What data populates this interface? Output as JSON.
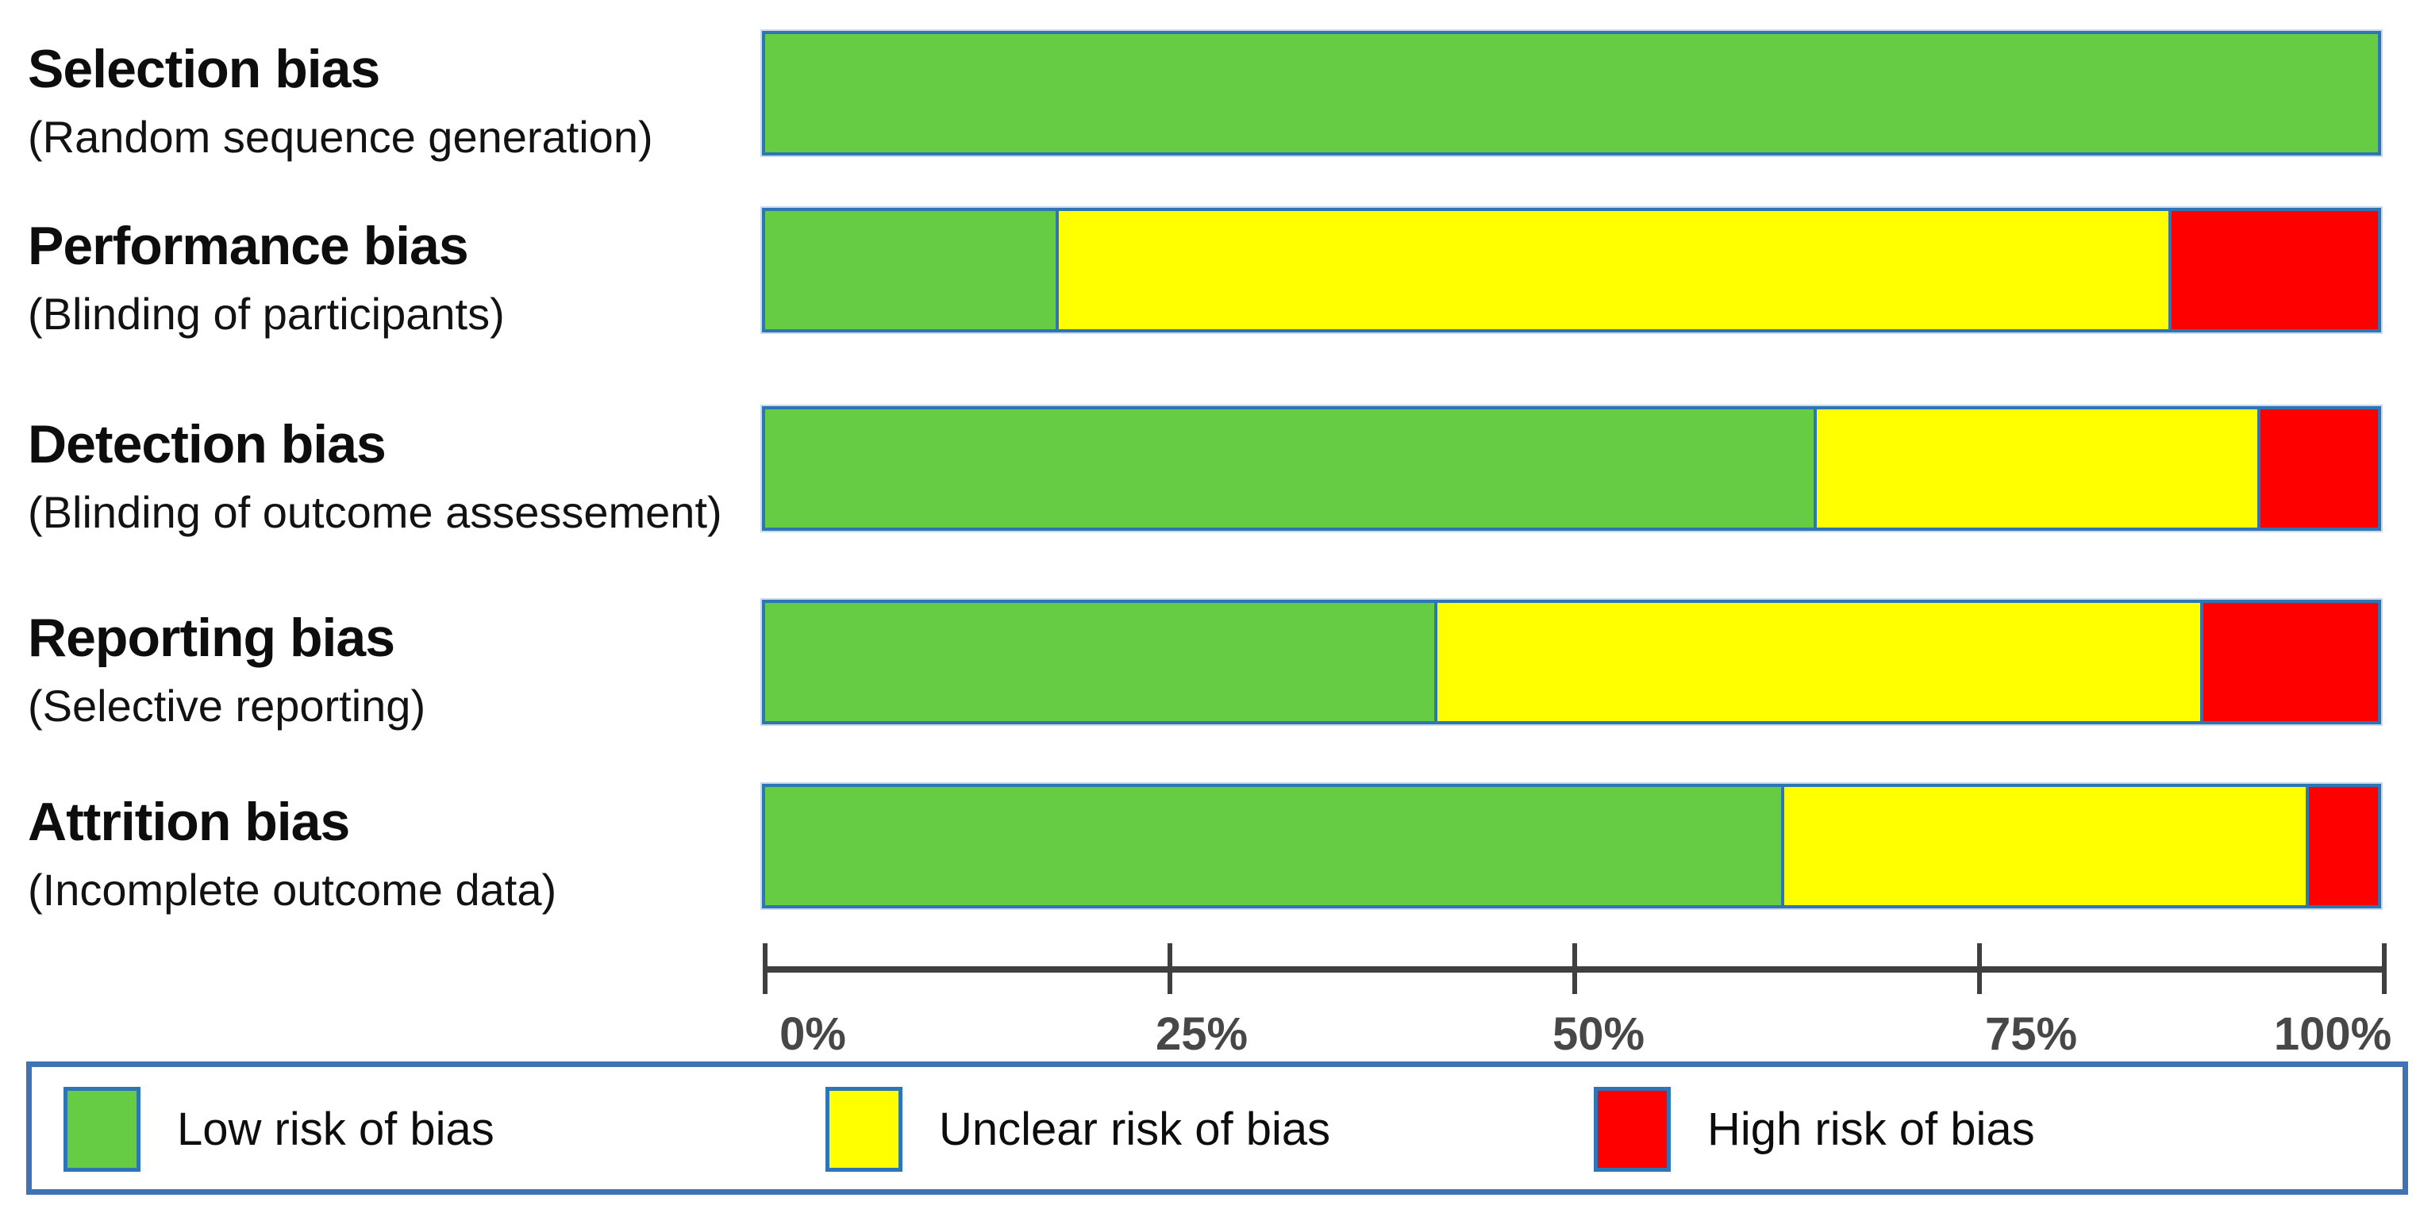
{
  "chart_data": {
    "type": "bar",
    "orientation": "horizontal",
    "stacked": true,
    "unit": "percent",
    "title": "",
    "xlabel": "",
    "ylabel": "",
    "grid": false,
    "legend_position": "bottom",
    "series_keys": [
      "low-risk",
      "unclear-risk",
      "high-risk"
    ],
    "colors": [
      "#66CC44",
      "#FFFF00",
      "#FF0000"
    ],
    "rows": [
      {
        "title": "Selection bias",
        "subtitle": "(Random sequence generation)",
        "values": [
          100,
          0,
          0
        ]
      },
      {
        "title": "Performance bias",
        "subtitle": "(Blinding of participants)",
        "values": [
          18,
          69,
          13
        ]
      },
      {
        "title": "Detection bias",
        "subtitle": "(Blinding of outcome assessement)",
        "values": [
          65,
          27.5,
          7.5
        ]
      },
      {
        "title": "Reporting bias",
        "subtitle": "(Selective reporting)",
        "values": [
          41.5,
          47.5,
          11
        ]
      },
      {
        "title": "Attrition bias",
        "subtitle": "(Incomplete outcome data)",
        "values": [
          63,
          32.5,
          4.5
        ]
      }
    ],
    "axis": {
      "min": 0,
      "max": 100,
      "tick_labels": [
        "0%",
        "25%",
        "50%",
        "75%",
        "100%"
      ]
    },
    "legend": [
      {
        "key": "low-risk",
        "label": "Low risk of bias",
        "color": "#66CC44"
      },
      {
        "key": "unclear-risk",
        "label": "Unclear risk of bias",
        "color": "#FFFF00"
      },
      {
        "key": "high-risk",
        "label": "High risk of bias",
        "color": "#FF0000"
      }
    ],
    "style_colors": {
      "bar_border": "#2E75B6",
      "legend_border": "#4173B4",
      "axis": "#3f3f3f",
      "axis_label": "#474747",
      "text": "#0d0d0d"
    }
  }
}
